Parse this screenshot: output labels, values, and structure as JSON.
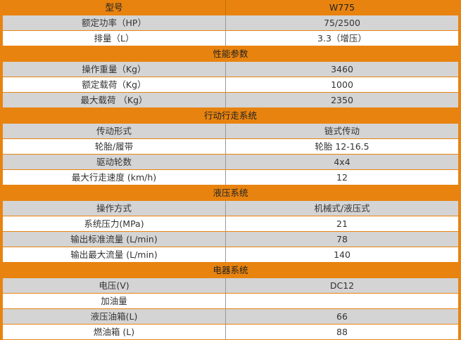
{
  "colors": {
    "accent": "#E8830F",
    "row_gray": "#D4D4D4",
    "row_white": "#FFFFFF"
  },
  "header": {
    "label": "型号",
    "value": "W775"
  },
  "sections": [
    {
      "title": "",
      "rows": [
        {
          "label": "额定功率（HP）",
          "value": "75/2500"
        },
        {
          "label": "排量（L）",
          "value": "3.3（增压）"
        }
      ]
    },
    {
      "title": "性能参数",
      "rows": [
        {
          "label": "操作重量（Kg）",
          "value": "3460"
        },
        {
          "label": "额定载荷（Kg）",
          "value": "1000"
        },
        {
          "label": "最大载荷 （Kg）",
          "value": "2350"
        }
      ]
    },
    {
      "title": "行动行走系统",
      "rows": [
        {
          "label": "传动形式",
          "value": "链式传动"
        },
        {
          "label": "轮胎/履带",
          "value": "轮胎 12-16.5"
        },
        {
          "label": "驱动轮数",
          "value": "4x4"
        },
        {
          "label": "最大行走速度 (km/h)",
          "value": "12"
        }
      ]
    },
    {
      "title": "液压系统",
      "rows": [
        {
          "label": "操作方式",
          "value": "机械式/液压式"
        },
        {
          "label": "系统压力(MPa)",
          "value": "21"
        },
        {
          "label": "输出标准流量  (L/min)",
          "value": "78"
        },
        {
          "label": "输出最大流量 (L/min)",
          "value": "140"
        }
      ]
    },
    {
      "title": "电器系统",
      "rows": [
        {
          "label": "电压(V)",
          "value": "DC12"
        },
        {
          "label": "加油量",
          "value": ""
        },
        {
          "label": "液压油箱(L)",
          "value": "66"
        },
        {
          "label": "燃油箱 (L)",
          "value": "88"
        }
      ]
    }
  ]
}
